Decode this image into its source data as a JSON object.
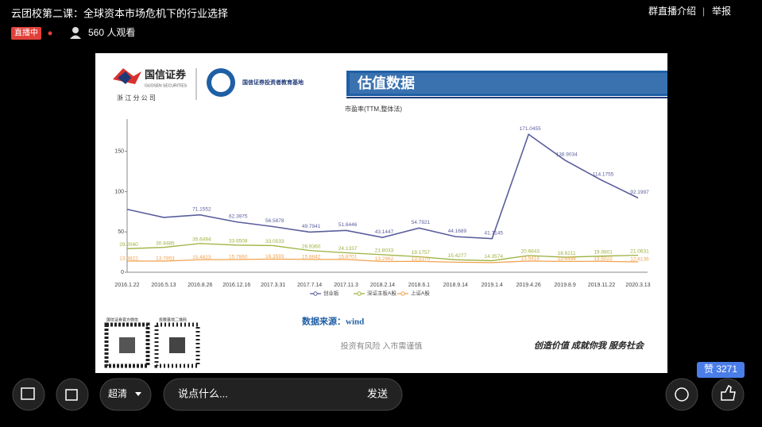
{
  "header": {
    "title": "云团校第二课：全球资本市场危机下的行业选择",
    "live_badge": "直播中",
    "viewers": "560 人观看",
    "links": [
      "群直播介绍",
      "举报"
    ]
  },
  "slide": {
    "company": "国信证券",
    "company_en": "GUOSEN SECURITIES",
    "branch": "浙 江 分 公 司",
    "base": "国信证券投资者教育基地",
    "heading": "估值数据",
    "qr_labels": [
      "国信证券官方微信",
      "投教基地二维码"
    ],
    "source": "数据来源：wind",
    "risk": "投资有风险 入市需谨慎",
    "slogan": "创造价值 成就你我 服务社会",
    "chart": {
      "type": "line",
      "title": "市盈率(TTM,整体法)",
      "x": [
        "2016.1.22",
        "2016.5.13",
        "2016.8.26",
        "2016.12.16",
        "2017.3.31",
        "2017.7.14",
        "2017.11.3",
        "2018.2.14",
        "2018.6.1",
        "2018.9.14",
        "2019.1.4",
        "2019.4.26",
        "2019.8.9",
        "2019.11.22",
        "2020.3.13"
      ],
      "series": [
        {
          "name": "创业板",
          "color": "#5a5e9c",
          "values": [
            78,
            68,
            71.1552,
            62.3975,
            56.5878,
            49.7941,
            51.8446,
            43.1447,
            54.7921,
            44.1689,
            41.7145,
            171.0455,
            138.9034,
            114.1755,
            92.1997
          ],
          "value_labels": [
            null,
            null,
            "71.1552",
            "62.3975",
            "56.5878",
            "49.7941",
            "51.8446",
            "43.1447",
            "54.7921",
            "44.1689",
            "41.7145",
            "171.0455",
            "138.9034",
            "114.1755",
            "92.1997"
          ]
        },
        {
          "name": "深证主板A股",
          "color": "#9cb23e",
          "values": [
            29.204,
            30.8485,
            35.6494,
            33.6508,
            33.0533,
            26.936,
            24.1337,
            21.8033,
            19.1757,
            15.4277,
            14.3574,
            20.6843,
            18.6211,
            19.9801,
            21.0631
          ],
          "value_labels": [
            "29.2040",
            "30.8485",
            "35.6494",
            "33.6508",
            "33.0533",
            "26.9360",
            "24.1337",
            "21.8033",
            "19.1757",
            "15.4277",
            "14.3574",
            "20.6843",
            "18.6211",
            "19.9801",
            "21.0631"
          ]
        },
        {
          "name": "上证A股",
          "color": "#f0a24e",
          "values": [
            13.8822,
            13.7953,
            15.4823,
            15.786,
            16.3593,
            15.8842,
            15.8701,
            13.2962,
            13.517,
            12.4,
            11.9,
            13.9416,
            13.4494,
            13.5022,
            12.8136
          ],
          "value_labels": [
            "13.8822",
            "13.7953",
            "15.4823",
            "15.7860",
            "16.3593",
            "15.8842",
            "15.8701",
            "13.2962",
            "13.5170",
            null,
            null,
            "13.9416",
            "13.4494",
            "13.5022",
            "12.8136"
          ]
        }
      ],
      "ylim": [
        0,
        190
      ],
      "yticks": [
        0,
        50,
        100,
        150
      ]
    }
  },
  "footer": {
    "quality": "超清",
    "input_placeholder": "说点什么...",
    "send": "发送",
    "likes": "赞 3271"
  }
}
